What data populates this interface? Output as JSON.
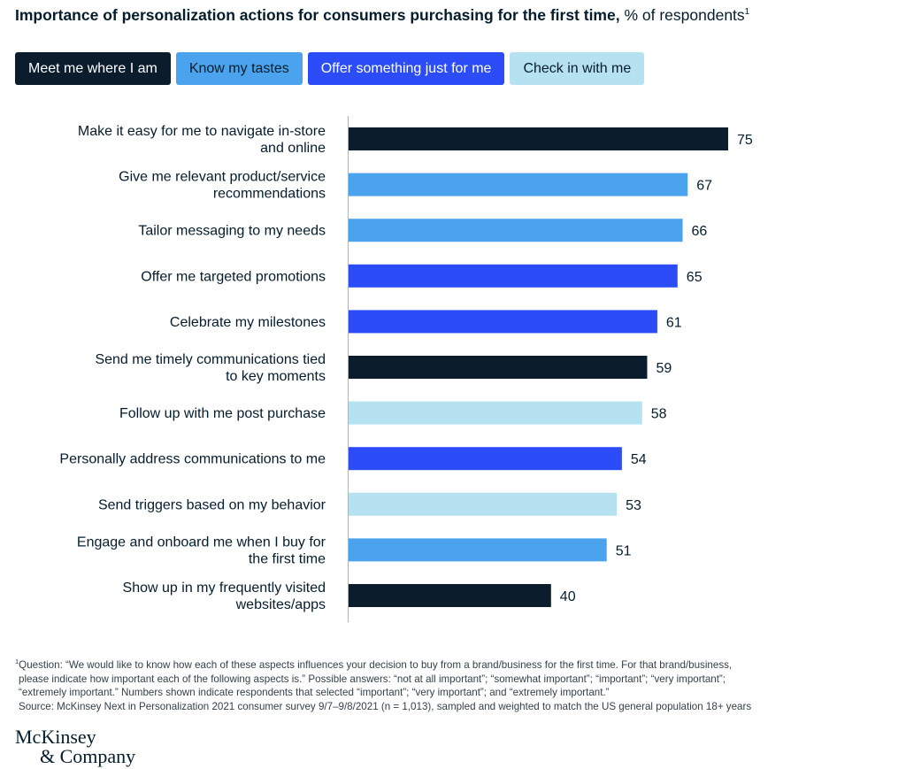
{
  "chart_data": {
    "type": "bar",
    "orientation": "horizontal",
    "title": "Importance of personalization actions for consumers purchasing for the first time,",
    "title_unit": "% of respondents",
    "title_footnote_marker": "1",
    "legend": [
      {
        "label": "Meet me where I am",
        "color": "#0b1c2d",
        "text_color": "#ffffff"
      },
      {
        "label": "Know my tastes",
        "color": "#4ba3ee",
        "text_color": "#051c2c"
      },
      {
        "label": "Offer something just for me",
        "color": "#2b4cf6",
        "text_color": "#ffffff"
      },
      {
        "label": "Check in with me",
        "color": "#b6e1f0",
        "text_color": "#051c2c"
      }
    ],
    "categories": [
      [
        "Make it easy for me to navigate in-store",
        "and online"
      ],
      [
        "Give me relevant product/service",
        "recommendations"
      ],
      [
        "Tailor messaging to my needs"
      ],
      [
        "Offer me targeted promotions"
      ],
      [
        "Celebrate my milestones"
      ],
      [
        "Send me timely communications tied",
        "to key moments"
      ],
      [
        "Follow up with me post purchase"
      ],
      [
        "Personally address communications to me"
      ],
      [
        "Send triggers based on my behavior"
      ],
      [
        "Engage and onboard me when I buy for",
        "the first time"
      ],
      [
        "Show up in my frequently visited",
        "websites/apps"
      ]
    ],
    "values": [
      75,
      67,
      66,
      65,
      61,
      59,
      58,
      54,
      53,
      51,
      40
    ],
    "groups": [
      0,
      1,
      1,
      2,
      2,
      0,
      3,
      2,
      3,
      1,
      0
    ],
    "xlim": [
      0,
      100
    ],
    "xlabel": "",
    "ylabel": ""
  },
  "footnote": {
    "marker": "1",
    "lines": [
      "Question: “We would like to know how each of these aspects influences your decision to buy from a brand/business for the first time. For that brand/business,",
      "please indicate how important each of the following aspects is.” Possible answers: “not at all important”; “somewhat important”; “important”; “very important”;",
      "“extremely important.” Numbers shown indicate respondents that selected “important”; “very important”; and “extremely important.”"
    ],
    "source": "Source: McKinsey Next in Personalization 2021 consumer survey 9/7–9/8/2021 (n = 1,013), sampled and weighted to match the US general population 18+ years"
  },
  "logo": {
    "line1": "McKinsey",
    "line2": "& Company"
  }
}
